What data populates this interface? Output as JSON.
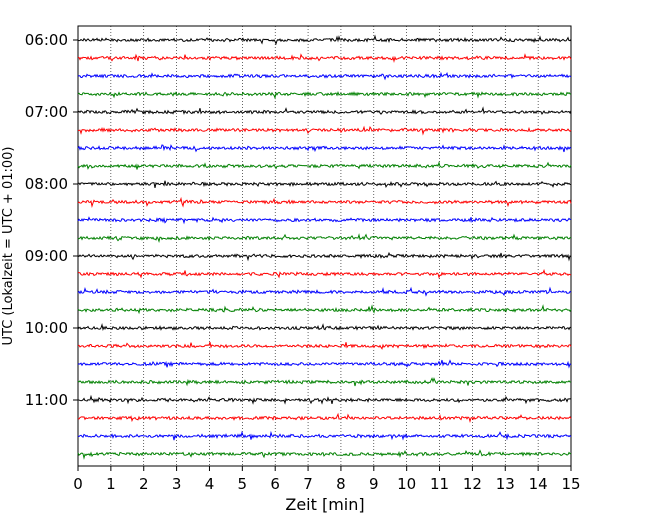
{
  "chart_data": {
    "type": "line",
    "subtype": "helicorder",
    "xlabel": "Zeit  [min]",
    "ylabel": "UTC (Lokalzeit = UTC + 01:00)",
    "xlim": [
      0,
      15
    ],
    "x_ticks": [
      "0",
      "1",
      "2",
      "3",
      "4",
      "5",
      "6",
      "7",
      "8",
      "9",
      "10",
      "11",
      "12",
      "13",
      "14",
      "15"
    ],
    "y_tick_labels": [
      "06:00",
      "07:00",
      "08:00",
      "09:00",
      "10:00",
      "11:00"
    ],
    "trace_interval_min": 15,
    "start_time": "06:00",
    "trace_count": 24,
    "colors": [
      "#000000",
      "#ff0000",
      "#0000ff",
      "#008000"
    ],
    "grid": {
      "x": "dotted",
      "y": "none"
    }
  }
}
